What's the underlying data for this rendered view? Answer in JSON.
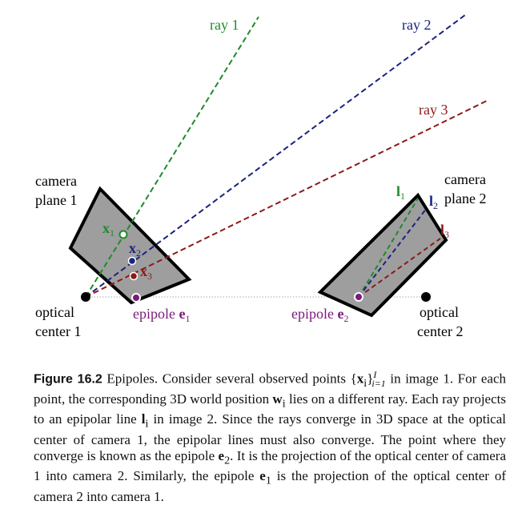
{
  "diagram": {
    "labels": {
      "ray1": "ray 1",
      "ray2": "ray 2",
      "ray3": "ray 3",
      "camera_plane_1_line1": "camera",
      "camera_plane_1_line2": "plane 1",
      "camera_plane_2_line1": "camera",
      "camera_plane_2_line2": "plane 2",
      "optical_center_1_line1": "optical",
      "optical_center_1_line2": "center 1",
      "optical_center_2_line1": "optical",
      "optical_center_2_line2": "center 2",
      "x1_base": "x",
      "x1_sub": "1",
      "x2_base": "x",
      "x2_sub": "2",
      "x3_base": "x",
      "x3_sub": "3",
      "l1_base": "l",
      "l1_sub": "1",
      "l2_base": "l",
      "l2_sub": "2",
      "l3_base": "l",
      "l3_sub": "3",
      "epipole1_text": "epipole ",
      "epipole1_sym": "e",
      "epipole1_sub": "1",
      "epipole2_text": "epipole ",
      "epipole2_sym": "e",
      "epipole2_sub": "2"
    },
    "colors": {
      "ray1": "#1f8a2a",
      "ray2": "#1a237e",
      "ray3": "#8b1a1a",
      "epipole": "#7a1a7a",
      "plane_fill": "#9e9e9e"
    }
  },
  "caption": {
    "figure_label": "Figure 16.2",
    "title": "Epipoles.",
    "sentence1_a": "Consider several observed points {",
    "sentence1_x": "x",
    "sentence1_i": "i",
    "sentence1_b": "}",
    "sentence1_sup": "I",
    "sentence1_sub": "i=1",
    "sentence1_c": " in image 1. For each point, the corresponding 3D world position ",
    "w": "w",
    "w_sub": "i",
    "sentence2": " lies on a different ray. Each ray projects to an epipolar line ",
    "l": "l",
    "l_sub": "i",
    "sentence3": " in image 2. Since the rays converge in 3D space at the optical center of camera 1, the epipolar lines must also converge. The point where they converge is known as the epipole ",
    "e2": "e",
    "e2_sub": "2",
    "sentence4": ". It is the projection of the optical center of camera 1 into camera 2. Similarly, the epipole ",
    "e1": "e",
    "e1_sub": "1",
    "sentence5": " is the projection of the optical center of camera 2 into camera 1."
  }
}
